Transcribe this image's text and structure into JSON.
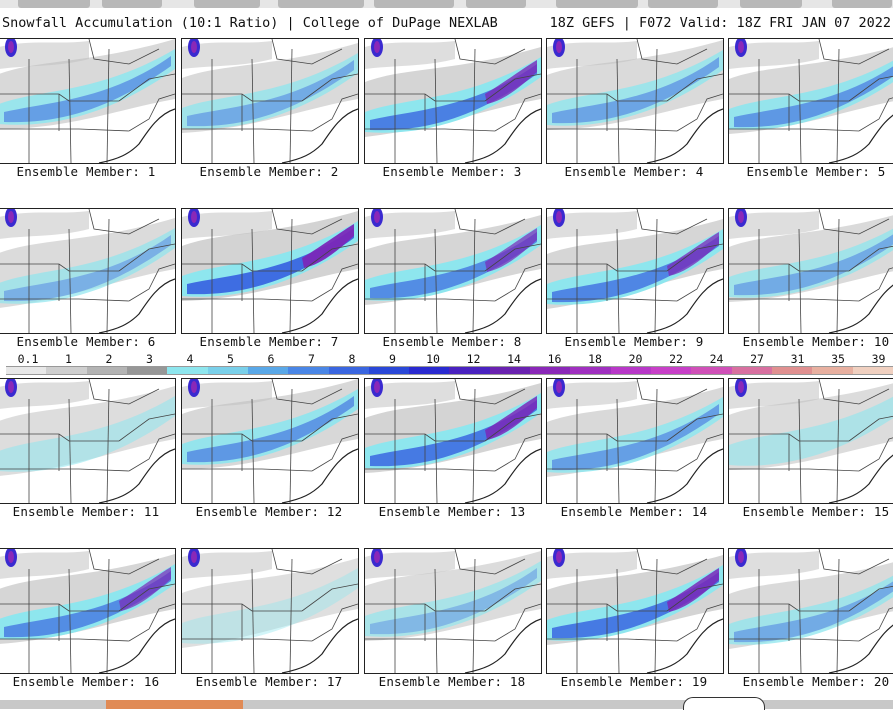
{
  "header": {
    "title": "Snowfall Accumulation (10:1 Ratio) | College of DuPage NEXLAB",
    "run_info": "18Z GEFS | F072 Valid: 18Z FRI JAN 07 2022"
  },
  "members": [
    {
      "label": "Ensemble Member: 1",
      "intensity": 0.55
    },
    {
      "label": "Ensemble Member: 2",
      "intensity": 0.45
    },
    {
      "label": "Ensemble Member: 3",
      "intensity": 0.8
    },
    {
      "label": "Ensemble Member: 4",
      "intensity": 0.5
    },
    {
      "label": "Ensemble Member: 5",
      "intensity": 0.6
    },
    {
      "label": "Ensemble Member: 6",
      "intensity": 0.4
    },
    {
      "label": "Ensemble Member: 7",
      "intensity": 0.95
    },
    {
      "label": "Ensemble Member: 8",
      "intensity": 0.7
    },
    {
      "label": "Ensemble Member: 9",
      "intensity": 0.75
    },
    {
      "label": "Ensemble Member: 10",
      "intensity": 0.45
    },
    {
      "label": "Ensemble Member: 11",
      "intensity": 0.25
    },
    {
      "label": "Ensemble Member: 12",
      "intensity": 0.6
    },
    {
      "label": "Ensemble Member: 13",
      "intensity": 0.85
    },
    {
      "label": "Ensemble Member: 14",
      "intensity": 0.55
    },
    {
      "label": "Ensemble Member: 15",
      "intensity": 0.3
    },
    {
      "label": "Ensemble Member: 16",
      "intensity": 0.7
    },
    {
      "label": "Ensemble Member: 17",
      "intensity": 0.1
    },
    {
      "label": "Ensemble Member: 18",
      "intensity": 0.35
    },
    {
      "label": "Ensemble Member: 19",
      "intensity": 0.85
    },
    {
      "label": "Ensemble Member: 20",
      "intensity": 0.45
    }
  ],
  "scale": {
    "labels": [
      "0.1",
      "1",
      "2",
      "3",
      "4",
      "5",
      "6",
      "7",
      "8",
      "9",
      "10",
      "12",
      "14",
      "16",
      "18",
      "20",
      "22",
      "24",
      "27",
      "31",
      "35",
      "39"
    ],
    "colors": [
      "#e8e8e8",
      "#cfcfcf",
      "#b4b4b4",
      "#979797",
      "#8ee6ee",
      "#7ad0ea",
      "#5aa8e8",
      "#4a86e6",
      "#3a66e0",
      "#2a48d8",
      "#2a2ad0",
      "#4a22c0",
      "#6a22b0",
      "#8a28b8",
      "#a030c0",
      "#b838c8",
      "#c840c8",
      "#d050b8",
      "#d870a0",
      "#e09090",
      "#e8b0a0",
      "#f0d0c0"
    ]
  }
}
